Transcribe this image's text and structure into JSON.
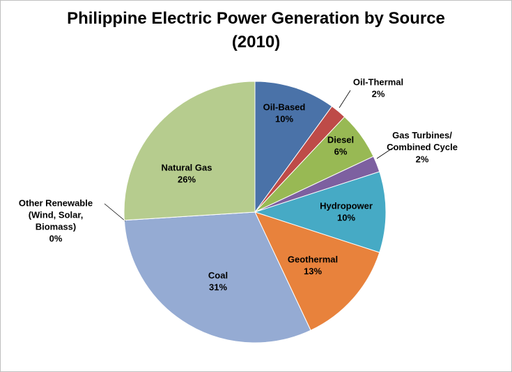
{
  "chart_data": {
    "type": "pie",
    "title": "Philippine Electric Power Generation by Source\n(2010)",
    "categories": [
      "Oil-Based",
      "Oil-Thermal",
      "Diesel",
      "Gas Turbines/\nCombined Cycle",
      "Hydropower",
      "Geothermal",
      "Coal",
      "Other Renewable\n(Wind, Solar,\nBiomass)",
      "Natural Gas"
    ],
    "values": [
      10,
      2,
      6,
      2,
      10,
      13,
      31,
      0,
      26
    ],
    "value_labels": [
      "10%",
      "2%",
      "6%",
      "2%",
      "10%",
      "13%",
      "31%",
      "0%",
      "26%"
    ],
    "colors": [
      "#4a72a8",
      "#be4b48",
      "#98b954",
      "#7d60a0",
      "#46aac5",
      "#e8823c",
      "#95abd3",
      "#c0504d",
      "#b6cc8e"
    ]
  }
}
